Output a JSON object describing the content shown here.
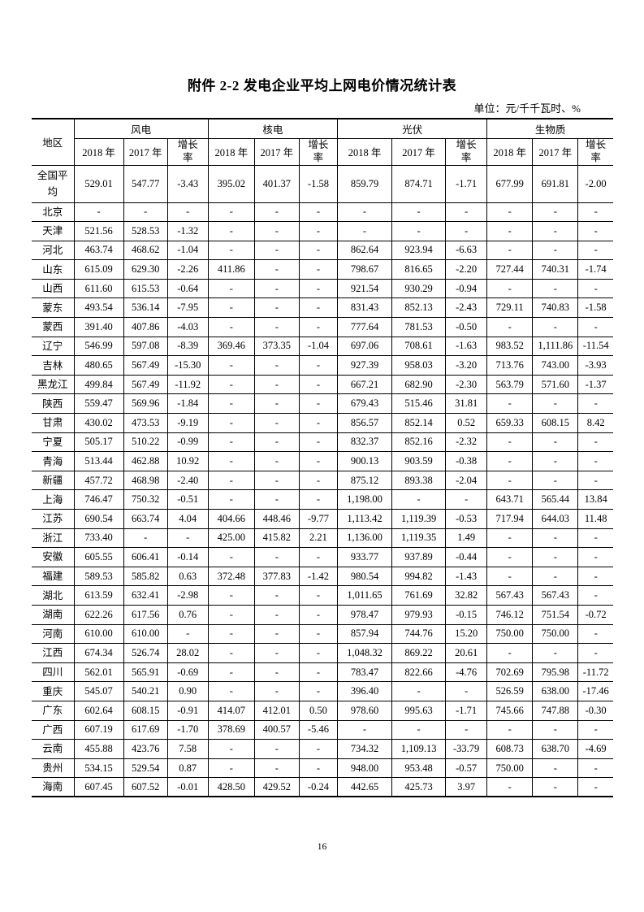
{
  "page": {
    "title": "附件 2-2 发电企业平均上网电价情况统计表",
    "unit_note": "单位：元/千千瓦时、%",
    "page_number": "16"
  },
  "table": {
    "region_header": "地区",
    "group_headers": [
      "风电",
      "核电",
      "光伏",
      "生物质"
    ],
    "sub_headers": [
      "2018 年",
      "2017 年",
      "增长率"
    ],
    "rows": [
      {
        "region": "全国平均",
        "values": [
          "529.01",
          "547.77",
          "-3.43",
          "395.02",
          "401.37",
          "-1.58",
          "859.79",
          "874.71",
          "-1.71",
          "677.99",
          "691.81",
          "-2.00"
        ]
      },
      {
        "region": "北京",
        "values": [
          "-",
          "-",
          "-",
          "-",
          "-",
          "-",
          "-",
          "-",
          "-",
          "-",
          "-",
          "-"
        ]
      },
      {
        "region": "天津",
        "values": [
          "521.56",
          "528.53",
          "-1.32",
          "-",
          "-",
          "-",
          "-",
          "-",
          "-",
          "-",
          "-",
          "-"
        ]
      },
      {
        "region": "河北",
        "values": [
          "463.74",
          "468.62",
          "-1.04",
          "-",
          "-",
          "-",
          "862.64",
          "923.94",
          "-6.63",
          "-",
          "-",
          "-"
        ]
      },
      {
        "region": "山东",
        "values": [
          "615.09",
          "629.30",
          "-2.26",
          "411.86",
          "-",
          "-",
          "798.67",
          "816.65",
          "-2.20",
          "727.44",
          "740.31",
          "-1.74"
        ]
      },
      {
        "region": "山西",
        "values": [
          "611.60",
          "615.53",
          "-0.64",
          "-",
          "-",
          "-",
          "921.54",
          "930.29",
          "-0.94",
          "-",
          "-",
          "-"
        ]
      },
      {
        "region": "蒙东",
        "values": [
          "493.54",
          "536.14",
          "-7.95",
          "-",
          "-",
          "-",
          "831.43",
          "852.13",
          "-2.43",
          "729.11",
          "740.83",
          "-1.58"
        ]
      },
      {
        "region": "蒙西",
        "values": [
          "391.40",
          "407.86",
          "-4.03",
          "-",
          "-",
          "-",
          "777.64",
          "781.53",
          "-0.50",
          "-",
          "-",
          "-"
        ]
      },
      {
        "region": "辽宁",
        "values": [
          "546.99",
          "597.08",
          "-8.39",
          "369.46",
          "373.35",
          "-1.04",
          "697.06",
          "708.61",
          "-1.63",
          "983.52",
          "1,111.86",
          "-11.54"
        ]
      },
      {
        "region": "吉林",
        "values": [
          "480.65",
          "567.49",
          "-15.30",
          "-",
          "-",
          "-",
          "927.39",
          "958.03",
          "-3.20",
          "713.76",
          "743.00",
          "-3.93"
        ]
      },
      {
        "region": "黑龙江",
        "values": [
          "499.84",
          "567.49",
          "-11.92",
          "-",
          "-",
          "-",
          "667.21",
          "682.90",
          "-2.30",
          "563.79",
          "571.60",
          "-1.37"
        ]
      },
      {
        "region": "陕西",
        "values": [
          "559.47",
          "569.96",
          "-1.84",
          "-",
          "-",
          "-",
          "679.43",
          "515.46",
          "31.81",
          "-",
          "-",
          "-"
        ]
      },
      {
        "region": "甘肃",
        "values": [
          "430.02",
          "473.53",
          "-9.19",
          "-",
          "-",
          "-",
          "856.57",
          "852.14",
          "0.52",
          "659.33",
          "608.15",
          "8.42"
        ]
      },
      {
        "region": "宁夏",
        "values": [
          "505.17",
          "510.22",
          "-0.99",
          "-",
          "-",
          "-",
          "832.37",
          "852.16",
          "-2.32",
          "-",
          "-",
          "-"
        ]
      },
      {
        "region": "青海",
        "values": [
          "513.44",
          "462.88",
          "10.92",
          "-",
          "-",
          "-",
          "900.13",
          "903.59",
          "-0.38",
          "-",
          "-",
          "-"
        ]
      },
      {
        "region": "新疆",
        "values": [
          "457.72",
          "468.98",
          "-2.40",
          "-",
          "-",
          "-",
          "875.12",
          "893.38",
          "-2.04",
          "-",
          "-",
          "-"
        ]
      },
      {
        "region": "上海",
        "values": [
          "746.47",
          "750.32",
          "-0.51",
          "-",
          "-",
          "-",
          "1,198.00",
          "-",
          "-",
          "643.71",
          "565.44",
          "13.84"
        ]
      },
      {
        "region": "江苏",
        "values": [
          "690.54",
          "663.74",
          "4.04",
          "404.66",
          "448.46",
          "-9.77",
          "1,113.42",
          "1,119.39",
          "-0.53",
          "717.94",
          "644.03",
          "11.48"
        ]
      },
      {
        "region": "浙江",
        "values": [
          "733.40",
          "-",
          "-",
          "425.00",
          "415.82",
          "2.21",
          "1,136.00",
          "1,119.35",
          "1.49",
          "-",
          "-",
          "-"
        ]
      },
      {
        "region": "安徽",
        "values": [
          "605.55",
          "606.41",
          "-0.14",
          "-",
          "-",
          "-",
          "933.77",
          "937.89",
          "-0.44",
          "-",
          "-",
          "-"
        ]
      },
      {
        "region": "福建",
        "values": [
          "589.53",
          "585.82",
          "0.63",
          "372.48",
          "377.83",
          "-1.42",
          "980.54",
          "994.82",
          "-1.43",
          "-",
          "-",
          "-"
        ]
      },
      {
        "region": "湖北",
        "values": [
          "613.59",
          "632.41",
          "-2.98",
          "-",
          "-",
          "-",
          "1,011.65",
          "761.69",
          "32.82",
          "567.43",
          "567.43",
          "-"
        ]
      },
      {
        "region": "湖南",
        "values": [
          "622.26",
          "617.56",
          "0.76",
          "-",
          "-",
          "-",
          "978.47",
          "979.93",
          "-0.15",
          "746.12",
          "751.54",
          "-0.72"
        ]
      },
      {
        "region": "河南",
        "values": [
          "610.00",
          "610.00",
          "-",
          "-",
          "-",
          "-",
          "857.94",
          "744.76",
          "15.20",
          "750.00",
          "750.00",
          "-"
        ]
      },
      {
        "region": "江西",
        "values": [
          "674.34",
          "526.74",
          "28.02",
          "-",
          "-",
          "-",
          "1,048.32",
          "869.22",
          "20.61",
          "-",
          "-",
          "-"
        ]
      },
      {
        "region": "四川",
        "values": [
          "562.01",
          "565.91",
          "-0.69",
          "-",
          "-",
          "-",
          "783.47",
          "822.66",
          "-4.76",
          "702.69",
          "795.98",
          "-11.72"
        ]
      },
      {
        "region": "重庆",
        "values": [
          "545.07",
          "540.21",
          "0.90",
          "-",
          "-",
          "-",
          "396.40",
          "-",
          "-",
          "526.59",
          "638.00",
          "-17.46"
        ]
      },
      {
        "region": "广东",
        "values": [
          "602.64",
          "608.15",
          "-0.91",
          "414.07",
          "412.01",
          "0.50",
          "978.60",
          "995.63",
          "-1.71",
          "745.66",
          "747.88",
          "-0.30"
        ]
      },
      {
        "region": "广西",
        "values": [
          "607.19",
          "617.69",
          "-1.70",
          "378.69",
          "400.57",
          "-5.46",
          "-",
          "-",
          "-",
          "-",
          "-",
          "-"
        ]
      },
      {
        "region": "云南",
        "values": [
          "455.88",
          "423.76",
          "7.58",
          "-",
          "-",
          "-",
          "734.32",
          "1,109.13",
          "-33.79",
          "608.73",
          "638.70",
          "-4.69"
        ]
      },
      {
        "region": "贵州",
        "values": [
          "534.15",
          "529.54",
          "0.87",
          "-",
          "-",
          "-",
          "948.00",
          "953.48",
          "-0.57",
          "750.00",
          "-",
          "-"
        ]
      },
      {
        "region": "海南",
        "values": [
          "607.45",
          "607.52",
          "-0.01",
          "428.50",
          "429.52",
          "-0.24",
          "442.65",
          "425.73",
          "3.97",
          "-",
          "-",
          "-"
        ]
      }
    ]
  }
}
